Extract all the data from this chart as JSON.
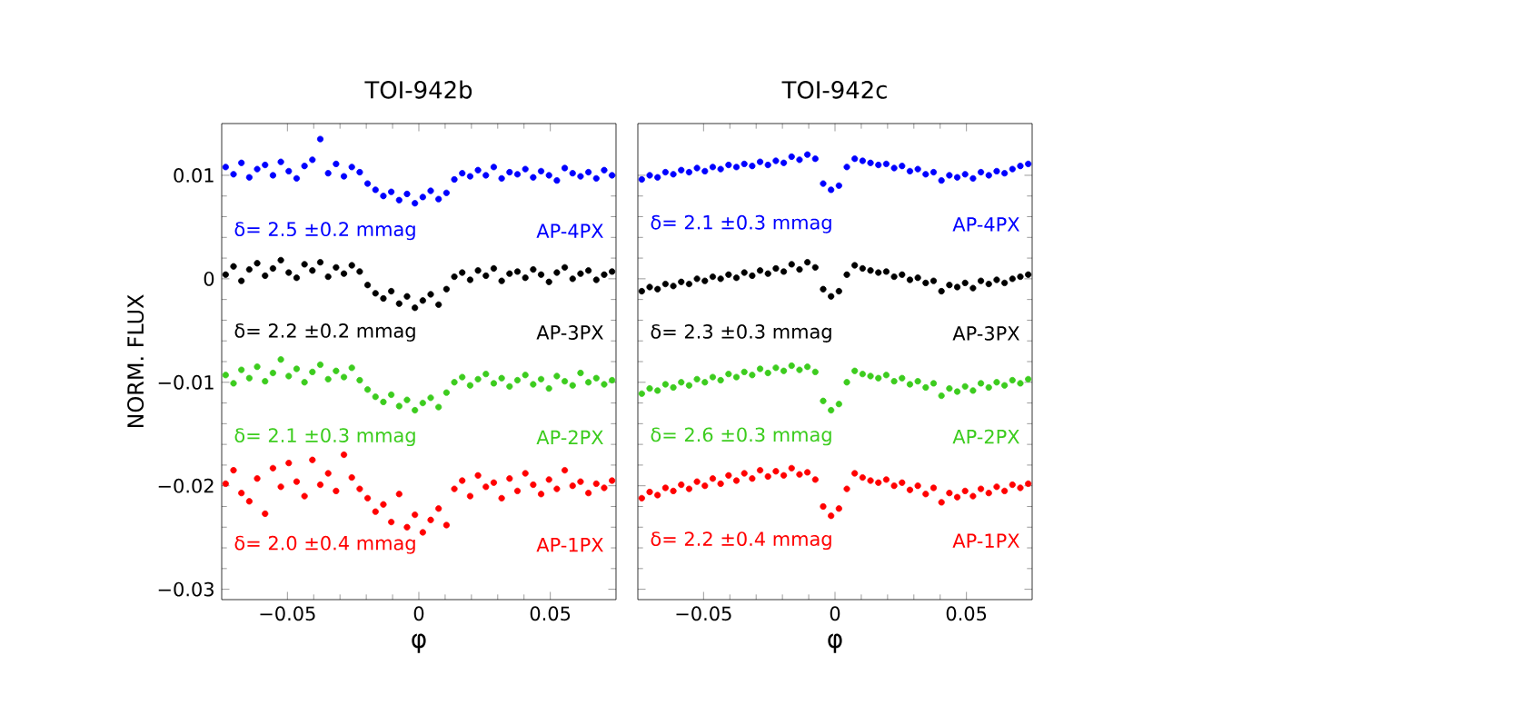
{
  "chart_data": [
    {
      "type": "scatter",
      "title": "TOI-942b",
      "xlabel": "φ",
      "ylabel": "NORM. FLUX",
      "marker": "circle",
      "xlim": [
        -0.075,
        0.075
      ],
      "ylim": [
        -0.031,
        0.015
      ],
      "xticks": [
        {
          "value": -0.05,
          "label": "−0.05"
        },
        0,
        0.05
      ],
      "yticks": [
        0.01,
        0,
        {
          "value": -0.01,
          "label": "−0.01"
        },
        {
          "value": -0.02,
          "label": "−0.02"
        },
        {
          "value": -0.03,
          "label": "−0.03"
        }
      ],
      "x": [
        -0.0735,
        -0.0705,
        -0.0675,
        -0.0645,
        -0.0615,
        -0.0585,
        -0.0555,
        -0.0525,
        -0.0495,
        -0.0465,
        -0.0435,
        -0.0405,
        -0.0375,
        -0.0345,
        -0.0315,
        -0.0285,
        -0.0255,
        -0.0225,
        -0.0195,
        -0.0165,
        -0.0135,
        -0.0105,
        -0.0075,
        -0.0045,
        -0.0015,
        0.0015,
        0.0045,
        0.0075,
        0.0105,
        0.0135,
        0.0165,
        0.0195,
        0.0225,
        0.0255,
        0.0285,
        0.0315,
        0.0345,
        0.0375,
        0.0405,
        0.0435,
        0.0465,
        0.0495,
        0.0525,
        0.0555,
        0.0585,
        0.0615,
        0.0645,
        0.0675,
        0.0705,
        0.0735
      ],
      "series": [
        {
          "color": "#0000ff",
          "values": [
            0.0108,
            0.0101,
            0.0112,
            0.0098,
            0.0106,
            0.011,
            0.01,
            0.0113,
            0.0104,
            0.0097,
            0.0109,
            0.0115,
            0.0135,
            0.0102,
            0.0111,
            0.0099,
            0.0108,
            0.0103,
            0.0092,
            0.0086,
            0.008,
            0.0084,
            0.0076,
            0.0082,
            0.0073,
            0.0079,
            0.0085,
            0.0077,
            0.0083,
            0.0096,
            0.0102,
            0.0099,
            0.0105,
            0.01,
            0.0108,
            0.0097,
            0.0103,
            0.0101,
            0.0106,
            0.0098,
            0.0104,
            0.01,
            0.0095,
            0.0107,
            0.0102,
            0.0099,
            0.0103,
            0.0097,
            0.0105,
            0.01
          ]
        },
        {
          "color": "#000000",
          "values": [
            0.0004,
            0.0012,
            -0.0002,
            0.0009,
            0.0015,
            0.0003,
            0.001,
            0.0018,
            0.0006,
            0.0001,
            0.0014,
            0.0008,
            0.0016,
            0.0002,
            0.0011,
            0.0005,
            0.0013,
            0.0007,
            -0.0006,
            -0.0014,
            -0.0019,
            -0.0012,
            -0.0024,
            -0.0017,
            -0.0028,
            -0.0021,
            -0.0015,
            -0.0025,
            -0.001,
            0.0002,
            0.0006,
            -0.0001,
            0.0008,
            0.0003,
            0.001,
            -0.0002,
            0.0005,
            0.0007,
            0.0001,
            0.0009,
            0.0004,
            -0.0003,
            0.0006,
            0.0011,
            0.0,
            0.0005,
            0.0008,
            -0.0001,
            0.0004,
            0.0007
          ]
        },
        {
          "color": "#3ccc1e",
          "values": [
            -0.0093,
            -0.0101,
            -0.0088,
            -0.0096,
            -0.0085,
            -0.0099,
            -0.0091,
            -0.0078,
            -0.0094,
            -0.0087,
            -0.01,
            -0.009,
            -0.0083,
            -0.0097,
            -0.0089,
            -0.0095,
            -0.0086,
            -0.0098,
            -0.0107,
            -0.0114,
            -0.0119,
            -0.0112,
            -0.0123,
            -0.0117,
            -0.0127,
            -0.012,
            -0.0115,
            -0.0124,
            -0.011,
            -0.01,
            -0.0095,
            -0.0103,
            -0.0097,
            -0.0092,
            -0.0101,
            -0.0096,
            -0.0104,
            -0.0098,
            -0.0093,
            -0.0102,
            -0.0097,
            -0.0106,
            -0.0094,
            -0.0099,
            -0.0103,
            -0.0091,
            -0.01,
            -0.0096,
            -0.0102,
            -0.0098
          ]
        },
        {
          "color": "#ff0000",
          "values": [
            -0.0198,
            -0.0185,
            -0.0207,
            -0.0215,
            -0.0193,
            -0.0227,
            -0.0183,
            -0.0201,
            -0.0178,
            -0.0196,
            -0.021,
            -0.0175,
            -0.0199,
            -0.0188,
            -0.0205,
            -0.017,
            -0.0192,
            -0.0203,
            -0.0212,
            -0.0225,
            -0.0218,
            -0.0235,
            -0.0208,
            -0.024,
            -0.0228,
            -0.0245,
            -0.0233,
            -0.0222,
            -0.0238,
            -0.0203,
            -0.0195,
            -0.021,
            -0.019,
            -0.0201,
            -0.0197,
            -0.0212,
            -0.0193,
            -0.0205,
            -0.0188,
            -0.0199,
            -0.0208,
            -0.0194,
            -0.0203,
            -0.0185,
            -0.02,
            -0.0196,
            -0.0207,
            -0.0198,
            -0.0202,
            -0.0195
          ]
        }
      ],
      "annotations": [
        "δ= 2.5 ±0.2 mmag",
        "AP-4PX",
        "δ= 2.2 ±0.2 mmag",
        "AP-3PX",
        "δ= 2.1 ±0.3 mmag",
        "AP-2PX",
        "δ= 2.0 ±0.4 mmag",
        "AP-1PX"
      ]
    },
    {
      "type": "scatter",
      "title": "TOI-942c",
      "xlabel": "φ",
      "marker": "circle",
      "tick_labels": "x",
      "xlim": [
        -0.075,
        0.075
      ],
      "ylim": [
        -0.031,
        0.015
      ],
      "xticks": [
        {
          "value": -0.05,
          "label": "−0.05"
        },
        0,
        0.05
      ],
      "yticks": [
        0.01,
        0,
        -0.01,
        -0.02,
        -0.03
      ],
      "x": [
        -0.0735,
        -0.0705,
        -0.0675,
        -0.0645,
        -0.0615,
        -0.0585,
        -0.0555,
        -0.0525,
        -0.0495,
        -0.0465,
        -0.0435,
        -0.0405,
        -0.0375,
        -0.0345,
        -0.0315,
        -0.0285,
        -0.0255,
        -0.0225,
        -0.0195,
        -0.0165,
        -0.0135,
        -0.0105,
        -0.0075,
        -0.0045,
        -0.0015,
        0.0015,
        0.0045,
        0.0075,
        0.0105,
        0.0135,
        0.0165,
        0.0195,
        0.0225,
        0.0255,
        0.0285,
        0.0315,
        0.0345,
        0.0375,
        0.0405,
        0.0435,
        0.0465,
        0.0495,
        0.0525,
        0.0555,
        0.0585,
        0.0615,
        0.0645,
        0.0675,
        0.0705,
        0.0735
      ],
      "series": [
        {
          "color": "#0000ff",
          "values": [
            0.0096,
            0.01,
            0.0098,
            0.0103,
            0.0101,
            0.0105,
            0.0103,
            0.0107,
            0.0104,
            0.0108,
            0.0106,
            0.011,
            0.0108,
            0.0111,
            0.0109,
            0.0113,
            0.011,
            0.0114,
            0.0112,
            0.0118,
            0.0115,
            0.012,
            0.0116,
            0.0092,
            0.0086,
            0.009,
            0.0108,
            0.0116,
            0.0114,
            0.0112,
            0.011,
            0.0111,
            0.0107,
            0.0109,
            0.0104,
            0.0106,
            0.0101,
            0.0103,
            0.0095,
            0.01,
            0.0098,
            0.0101,
            0.0097,
            0.0103,
            0.01,
            0.0104,
            0.0102,
            0.0106,
            0.0109,
            0.0111
          ]
        },
        {
          "color": "#000000",
          "values": [
            -0.0012,
            -0.0008,
            -0.001,
            -0.0005,
            -0.0007,
            -0.0003,
            -0.0005,
            0.0,
            -0.0002,
            0.0002,
            0.0,
            0.0004,
            0.0001,
            0.0006,
            0.0003,
            0.0008,
            0.0005,
            0.001,
            0.0007,
            0.0014,
            0.0009,
            0.0016,
            0.0011,
            -0.001,
            -0.0017,
            -0.0012,
            0.0004,
            0.0013,
            0.001,
            0.0008,
            0.0006,
            0.0007,
            0.0002,
            0.0004,
            -0.0001,
            0.0001,
            -0.0004,
            -0.0002,
            -0.0012,
            -0.0006,
            -0.0008,
            -0.0004,
            -0.0009,
            -0.0002,
            -0.0005,
            -0.0001,
            -0.0004,
            0.0,
            0.0002,
            0.0004
          ]
        },
        {
          "color": "#3ccc1e",
          "values": [
            -0.0111,
            -0.0106,
            -0.0108,
            -0.0102,
            -0.0105,
            -0.01,
            -0.0103,
            -0.0097,
            -0.01,
            -0.0095,
            -0.0098,
            -0.0092,
            -0.0095,
            -0.009,
            -0.0093,
            -0.0087,
            -0.0091,
            -0.0086,
            -0.0089,
            -0.0084,
            -0.0088,
            -0.0085,
            -0.009,
            -0.0118,
            -0.0127,
            -0.0121,
            -0.01,
            -0.0089,
            -0.0092,
            -0.0094,
            -0.0096,
            -0.0093,
            -0.0099,
            -0.0096,
            -0.0102,
            -0.0099,
            -0.0105,
            -0.0101,
            -0.0113,
            -0.0106,
            -0.0109,
            -0.0104,
            -0.0108,
            -0.0101,
            -0.0105,
            -0.01,
            -0.0103,
            -0.0098,
            -0.0101,
            -0.0097
          ]
        },
        {
          "color": "#ff0000",
          "values": [
            -0.0212,
            -0.0206,
            -0.0209,
            -0.0202,
            -0.0205,
            -0.0199,
            -0.0203,
            -0.0196,
            -0.02,
            -0.0193,
            -0.0198,
            -0.019,
            -0.0195,
            -0.0188,
            -0.0193,
            -0.0185,
            -0.0191,
            -0.0186,
            -0.019,
            -0.0183,
            -0.0189,
            -0.0187,
            -0.0194,
            -0.022,
            -0.0229,
            -0.0222,
            -0.0203,
            -0.0188,
            -0.0192,
            -0.0195,
            -0.0197,
            -0.0194,
            -0.02,
            -0.0197,
            -0.0204,
            -0.02,
            -0.0208,
            -0.0202,
            -0.0216,
            -0.0207,
            -0.0211,
            -0.0205,
            -0.021,
            -0.0203,
            -0.0207,
            -0.0201,
            -0.0205,
            -0.0199,
            -0.0202,
            -0.0198
          ]
        }
      ],
      "annotations": [
        "δ= 2.1 ±0.3 mmag",
        "AP-4PX",
        "δ= 2.3 ±0.3 mmag",
        "AP-3PX",
        "δ= 2.6 ±0.3 mmag",
        "AP-2PX",
        "δ= 2.2 ±0.4 mmag",
        "AP-1PX"
      ]
    }
  ]
}
